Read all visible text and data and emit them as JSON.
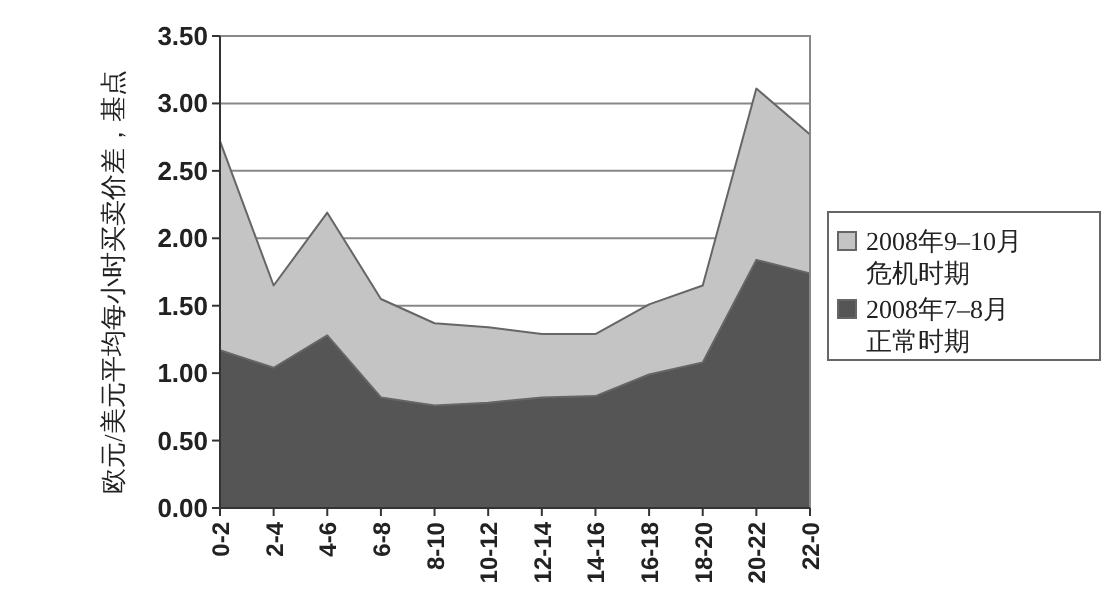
{
  "chart_data": {
    "type": "area",
    "ylabel": "欧元/美元平均每小时买卖价差，基点",
    "categories": [
      "0-2",
      "2-4",
      "4-6",
      "6-8",
      "8-10",
      "10-12",
      "12-14",
      "14-16",
      "16-18",
      "18-20",
      "20-22",
      "22-0"
    ],
    "series": [
      {
        "name": "2008年9–10月危机时期",
        "color": "#c4c4c4",
        "values": [
          2.72,
          1.65,
          2.19,
          1.55,
          1.37,
          1.34,
          1.29,
          1.29,
          1.51,
          1.65,
          3.11,
          2.77
        ]
      },
      {
        "name": "2008年7–8月正常时期",
        "color": "#555555",
        "values": [
          1.17,
          1.04,
          1.28,
          0.82,
          0.76,
          0.78,
          0.82,
          0.83,
          0.99,
          1.08,
          1.84,
          1.74
        ]
      }
    ],
    "ylim": [
      0,
      3.5
    ],
    "yticks": [
      {
        "value": 0,
        "label": "0.00"
      },
      {
        "value": 0.5,
        "label": "0.50"
      },
      {
        "value": 1,
        "label": "1.00"
      },
      {
        "value": 1.5,
        "label": "1.50"
      },
      {
        "value": 2,
        "label": "2.00"
      },
      {
        "value": 2.5,
        "label": "2.50"
      },
      {
        "value": 3,
        "label": "3.00"
      },
      {
        "value": 3.5,
        "label": "3.50"
      }
    ],
    "grid": "y",
    "legend": "right"
  }
}
